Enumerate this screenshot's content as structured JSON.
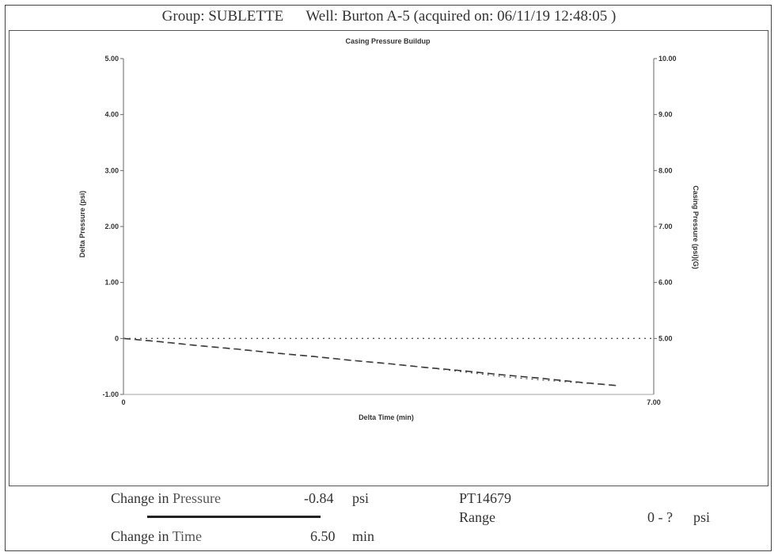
{
  "header": {
    "group_label": "Group:",
    "group_value": "SUBLETTE",
    "well_label": "Well:",
    "well_value": "Burton A-5",
    "acquired_text": "(acquired on: 06/11/19 12:48:05 )"
  },
  "chart_data": {
    "type": "line",
    "title": "Casing Pressure Buildup",
    "xlabel": "Delta Time (min)",
    "ylabel": "Delta Pressure (psi)",
    "y2label": "Casing Pressure (psi)(G)",
    "xlim": [
      0,
      7
    ],
    "ylim": [
      -1,
      5
    ],
    "y2lim": [
      4,
      10
    ],
    "x_ticks": [
      "0",
      "7.00"
    ],
    "y_ticks": [
      "-1.00",
      "0",
      "1.00",
      "2.00",
      "3.00",
      "4.00",
      "5.00"
    ],
    "y2_ticks": [
      "5.00",
      "6.00",
      "7.00",
      "8.00",
      "9.00",
      "10.00"
    ],
    "series": [
      {
        "axis": "left",
        "style": "dashed",
        "color": "#333333",
        "x": [
          0,
          0.5,
          1.0,
          1.5,
          2.0,
          2.5,
          3.0,
          3.5,
          4.0,
          4.5,
          5.0,
          5.5,
          6.0,
          6.5
        ],
        "y": [
          0,
          -0.06,
          -0.13,
          -0.19,
          -0.26,
          -0.32,
          -0.39,
          -0.45,
          -0.52,
          -0.58,
          -0.65,
          -0.71,
          -0.78,
          -0.84
        ]
      },
      {
        "axis": "left",
        "style": "dotted",
        "color": "#555555",
        "x": [
          0,
          1.0,
          2.0,
          3.0,
          4.0,
          5.0,
          5.5,
          6.0,
          6.5
        ],
        "y": [
          0,
          -0.13,
          -0.26,
          -0.39,
          -0.52,
          -0.68,
          -0.74,
          -0.79,
          -0.84
        ]
      },
      {
        "axis": "right",
        "style": "dotted",
        "color": "#555555",
        "x": [
          0,
          7
        ],
        "y": [
          5.0,
          5.0
        ]
      }
    ]
  },
  "footer": {
    "pressure_word": "Change in",
    "pressure_name": "Pressure",
    "pressure_value": "-0.84",
    "pressure_unit": "psi",
    "time_word": "Change in",
    "time_name": "Time",
    "time_value": "6.50",
    "time_unit": "min",
    "gauge_id": "PT14679",
    "range_label": "Range",
    "range_value": "0 - ?",
    "range_unit": "psi"
  }
}
